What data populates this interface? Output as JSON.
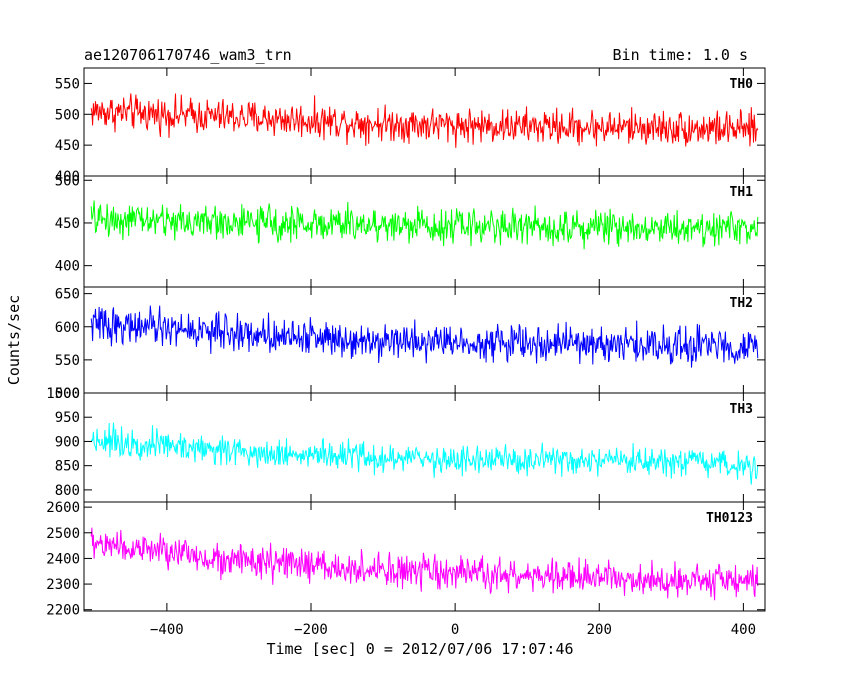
{
  "header": {
    "title": "ae120706170746_wam3_trn",
    "bin_time": "Bin time: 1.0 s"
  },
  "chart_data": {
    "type": "line",
    "title": "ae120706170746_wam3_trn",
    "xlabel": "Time [sec] 0 = 2012/07/06 17:07:46",
    "ylabel": "Counts/sec",
    "xlim": [
      -515,
      430
    ],
    "xticks": [
      -400,
      -200,
      0,
      200,
      400
    ],
    "x_range": [
      -505,
      420
    ],
    "bin_time": 1.0,
    "grid": false,
    "series": [
      {
        "name": "TH0",
        "color": "#ff0000",
        "ylim": [
          400,
          575
        ],
        "yticks": [
          400,
          450,
          500,
          550
        ],
        "trend": [
          [
            -505,
            505
          ],
          [
            -300,
            495
          ],
          [
            -100,
            485
          ],
          [
            100,
            480
          ],
          [
            300,
            478
          ],
          [
            420,
            475
          ]
        ],
        "noise_amp": 42
      },
      {
        "name": "TH1",
        "color": "#00ff00",
        "ylim": [
          375,
          505
        ],
        "yticks": [
          400,
          450,
          500
        ],
        "trend": [
          [
            -505,
            455
          ],
          [
            -300,
            450
          ],
          [
            -100,
            448
          ],
          [
            100,
            446
          ],
          [
            300,
            445
          ],
          [
            420,
            444
          ]
        ],
        "noise_amp": 30
      },
      {
        "name": "TH2",
        "color": "#0000ff",
        "ylim": [
          500,
          660
        ],
        "yticks": [
          500,
          550,
          600,
          650
        ],
        "trend": [
          [
            -505,
            605
          ],
          [
            -300,
            590
          ],
          [
            -100,
            580
          ],
          [
            100,
            575
          ],
          [
            300,
            572
          ],
          [
            420,
            570
          ]
        ],
        "noise_amp": 40
      },
      {
        "name": "TH3",
        "color": "#00ffff",
        "ylim": [
          775,
          1000
        ],
        "yticks": [
          800,
          850,
          900,
          950,
          1000
        ],
        "trend": [
          [
            -505,
            905
          ],
          [
            -300,
            880
          ],
          [
            -100,
            865
          ],
          [
            100,
            860
          ],
          [
            300,
            855
          ],
          [
            420,
            850
          ]
        ],
        "noise_amp": 45
      },
      {
        "name": "TH0123",
        "color": "#ff00ff",
        "ylim": [
          2195,
          2620
        ],
        "yticks": [
          2200,
          2300,
          2400,
          2500,
          2600
        ],
        "trend": [
          [
            -505,
            2460
          ],
          [
            -300,
            2390
          ],
          [
            -100,
            2350
          ],
          [
            100,
            2330
          ],
          [
            300,
            2320
          ],
          [
            420,
            2310
          ]
        ],
        "noise_amp": 95
      }
    ]
  }
}
